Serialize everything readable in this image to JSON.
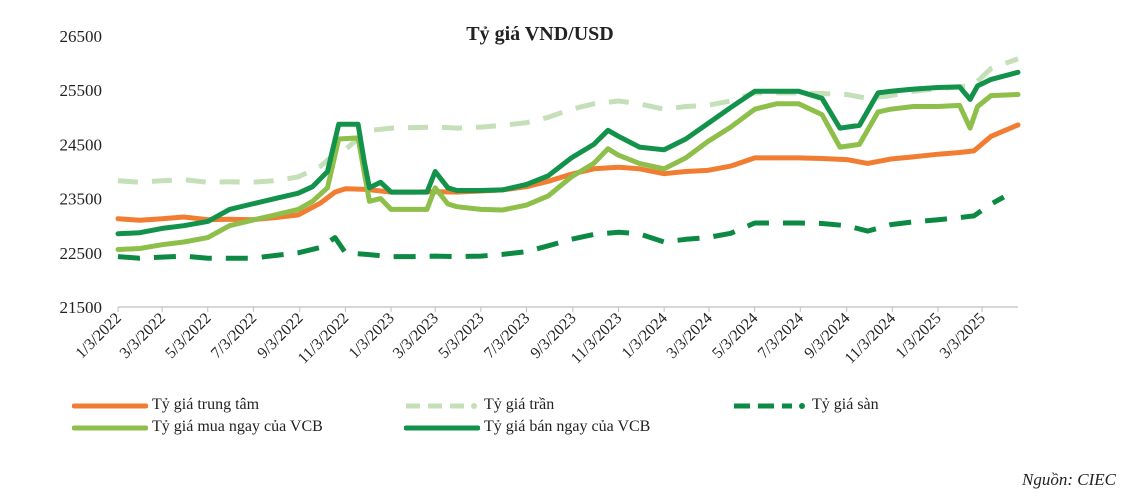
{
  "chart_data": {
    "type": "line",
    "title": "Tỷ giá VND/USD",
    "ylim": [
      21500,
      26500
    ],
    "yticks": [
      21500,
      22500,
      23500,
      24500,
      25500,
      26500
    ],
    "xlim": [
      "2022-01-03",
      "2025-04-20"
    ],
    "xticks": [
      "1/3/2022",
      "3/3/2022",
      "5/3/2022",
      "7/3/2022",
      "9/3/2022",
      "11/3/2022",
      "1/3/2023",
      "3/3/2023",
      "5/3/2023",
      "7/3/2023",
      "9/3/2023",
      "11/3/2023",
      "1/3/2024",
      "3/3/2024",
      "5/3/2024",
      "7/3/2024",
      "9/3/2024",
      "11/3/2024",
      "1/3/2025",
      "3/3/2025"
    ],
    "grid": false,
    "legend_position": "bottom",
    "source": "Nguồn: CIEC",
    "series": [
      {
        "name": "Tỷ giá trung tâm",
        "color": "#f07d32",
        "style": "solid",
        "points": [
          [
            "2022-01-03",
            23130
          ],
          [
            "2022-02-01",
            23100
          ],
          [
            "2022-03-03",
            23130
          ],
          [
            "2022-04-01",
            23160
          ],
          [
            "2022-05-03",
            23110
          ],
          [
            "2022-06-01",
            23120
          ],
          [
            "2022-07-01",
            23110
          ],
          [
            "2022-08-01",
            23150
          ],
          [
            "2022-09-01",
            23200
          ],
          [
            "2022-10-01",
            23420
          ],
          [
            "2022-10-20",
            23620
          ],
          [
            "2022-11-03",
            23680
          ],
          [
            "2022-12-01",
            23670
          ],
          [
            "2023-01-03",
            23620
          ],
          [
            "2023-02-01",
            23620
          ],
          [
            "2023-03-03",
            23630
          ],
          [
            "2023-04-01",
            23620
          ],
          [
            "2023-05-03",
            23640
          ],
          [
            "2023-06-01",
            23660
          ],
          [
            "2023-07-03",
            23720
          ],
          [
            "2023-08-01",
            23820
          ],
          [
            "2023-09-01",
            23950
          ],
          [
            "2023-10-01",
            24050
          ],
          [
            "2023-11-03",
            24080
          ],
          [
            "2023-12-01",
            24050
          ],
          [
            "2024-01-03",
            23960
          ],
          [
            "2024-02-01",
            24000
          ],
          [
            "2024-03-01",
            24020
          ],
          [
            "2024-04-01",
            24100
          ],
          [
            "2024-05-03",
            24250
          ],
          [
            "2024-06-01",
            24250
          ],
          [
            "2024-07-01",
            24250
          ],
          [
            "2024-08-01",
            24240
          ],
          [
            "2024-09-03",
            24220
          ],
          [
            "2024-10-01",
            24150
          ],
          [
            "2024-11-01",
            24230
          ],
          [
            "2024-12-01",
            24270
          ],
          [
            "2025-01-03",
            24320
          ],
          [
            "2025-02-01",
            24350
          ],
          [
            "2025-02-20",
            24380
          ],
          [
            "2025-03-15",
            24650
          ],
          [
            "2025-04-20",
            24860
          ]
        ]
      },
      {
        "name": "Tỷ giá trần",
        "color": "#c5dfb9",
        "style": "dashed",
        "points": [
          [
            "2022-01-03",
            23830
          ],
          [
            "2022-02-01",
            23800
          ],
          [
            "2022-03-03",
            23830
          ],
          [
            "2022-04-01",
            23850
          ],
          [
            "2022-05-03",
            23800
          ],
          [
            "2022-06-01",
            23810
          ],
          [
            "2022-07-01",
            23800
          ],
          [
            "2022-08-01",
            23830
          ],
          [
            "2022-09-01",
            23900
          ],
          [
            "2022-10-01",
            24100
          ],
          [
            "2022-10-20",
            24330
          ],
          [
            "2022-11-03",
            24400
          ],
          [
            "2022-12-01",
            24750
          ],
          [
            "2023-01-03",
            24800
          ],
          [
            "2023-02-01",
            24810
          ],
          [
            "2023-03-03",
            24820
          ],
          [
            "2023-04-01",
            24800
          ],
          [
            "2023-05-03",
            24820
          ],
          [
            "2023-06-01",
            24850
          ],
          [
            "2023-07-03",
            24900
          ],
          [
            "2023-08-01",
            25000
          ],
          [
            "2023-09-01",
            25150
          ],
          [
            "2023-10-01",
            25250
          ],
          [
            "2023-11-03",
            25300
          ],
          [
            "2023-12-01",
            25250
          ],
          [
            "2024-01-03",
            25150
          ],
          [
            "2024-02-01",
            25200
          ],
          [
            "2024-03-01",
            25220
          ],
          [
            "2024-04-01",
            25300
          ],
          [
            "2024-05-03",
            25450
          ],
          [
            "2024-06-01",
            25450
          ],
          [
            "2024-07-01",
            25450
          ],
          [
            "2024-08-01",
            25440
          ],
          [
            "2024-09-03",
            25420
          ],
          [
            "2024-10-01",
            25350
          ],
          [
            "2024-11-01",
            25400
          ],
          [
            "2024-12-01",
            25480
          ],
          [
            "2025-01-03",
            25530
          ],
          [
            "2025-02-01",
            25560
          ],
          [
            "2025-02-20",
            25600
          ],
          [
            "2025-03-15",
            25900
          ],
          [
            "2025-04-20",
            26080
          ]
        ]
      },
      {
        "name": "Tỷ giá sàn",
        "color": "#0c8a43",
        "style": "dashed",
        "points": [
          [
            "2022-01-03",
            22430
          ],
          [
            "2022-02-01",
            22400
          ],
          [
            "2022-03-03",
            22420
          ],
          [
            "2022-04-01",
            22440
          ],
          [
            "2022-05-03",
            22400
          ],
          [
            "2022-06-01",
            22400
          ],
          [
            "2022-07-01",
            22400
          ],
          [
            "2022-08-01",
            22450
          ],
          [
            "2022-09-01",
            22500
          ],
          [
            "2022-10-01",
            22600
          ],
          [
            "2022-10-20",
            22780
          ],
          [
            "2022-11-03",
            22500
          ],
          [
            "2022-12-01",
            22470
          ],
          [
            "2023-01-03",
            22430
          ],
          [
            "2023-02-01",
            22430
          ],
          [
            "2023-03-03",
            22440
          ],
          [
            "2023-04-01",
            22430
          ],
          [
            "2023-05-03",
            22440
          ],
          [
            "2023-06-01",
            22470
          ],
          [
            "2023-07-03",
            22520
          ],
          [
            "2023-08-01",
            22630
          ],
          [
            "2023-09-01",
            22750
          ],
          [
            "2023-10-01",
            22840
          ],
          [
            "2023-11-03",
            22880
          ],
          [
            "2023-12-01",
            22850
          ],
          [
            "2024-01-03",
            22700
          ],
          [
            "2024-02-01",
            22750
          ],
          [
            "2024-03-01",
            22780
          ],
          [
            "2024-04-01",
            22860
          ],
          [
            "2024-05-03",
            23050
          ],
          [
            "2024-06-01",
            23050
          ],
          [
            "2024-07-01",
            23050
          ],
          [
            "2024-08-01",
            23040
          ],
          [
            "2024-09-03",
            23000
          ],
          [
            "2024-10-01",
            22900
          ],
          [
            "2024-11-01",
            23020
          ],
          [
            "2024-12-01",
            23070
          ],
          [
            "2025-01-03",
            23110
          ],
          [
            "2025-02-01",
            23150
          ],
          [
            "2025-02-20",
            23180
          ],
          [
            "2025-03-15",
            23400
          ],
          [
            "2025-04-01",
            23530
          ]
        ]
      },
      {
        "name": "Tỷ giá mua ngay của VCB",
        "color": "#8dbf4a",
        "style": "solid",
        "points": [
          [
            "2022-01-03",
            22560
          ],
          [
            "2022-02-01",
            22580
          ],
          [
            "2022-03-03",
            22650
          ],
          [
            "2022-04-01",
            22700
          ],
          [
            "2022-05-03",
            22780
          ],
          [
            "2022-06-01",
            23000
          ],
          [
            "2022-07-01",
            23100
          ],
          [
            "2022-08-01",
            23200
          ],
          [
            "2022-09-01",
            23300
          ],
          [
            "2022-09-20",
            23450
          ],
          [
            "2022-10-10",
            23700
          ],
          [
            "2022-10-25",
            24600
          ],
          [
            "2022-11-20",
            24620
          ],
          [
            "2022-11-28",
            24000
          ],
          [
            "2022-12-05",
            23450
          ],
          [
            "2022-12-20",
            23500
          ],
          [
            "2023-01-03",
            23300
          ],
          [
            "2023-02-01",
            23300
          ],
          [
            "2023-02-20",
            23300
          ],
          [
            "2023-03-03",
            23700
          ],
          [
            "2023-03-20",
            23400
          ],
          [
            "2023-04-01",
            23350
          ],
          [
            "2023-05-03",
            23300
          ],
          [
            "2023-06-01",
            23290
          ],
          [
            "2023-07-03",
            23380
          ],
          [
            "2023-08-01",
            23550
          ],
          [
            "2023-09-01",
            23900
          ],
          [
            "2023-10-01",
            24150
          ],
          [
            "2023-10-20",
            24420
          ],
          [
            "2023-11-03",
            24300
          ],
          [
            "2023-12-01",
            24150
          ],
          [
            "2024-01-03",
            24050
          ],
          [
            "2024-02-01",
            24250
          ],
          [
            "2024-03-01",
            24550
          ],
          [
            "2024-04-01",
            24820
          ],
          [
            "2024-05-03",
            25150
          ],
          [
            "2024-06-01",
            25250
          ],
          [
            "2024-07-01",
            25250
          ],
          [
            "2024-08-01",
            25050
          ],
          [
            "2024-08-25",
            24450
          ],
          [
            "2024-09-20",
            24500
          ],
          [
            "2024-10-15",
            25100
          ],
          [
            "2024-11-01",
            25150
          ],
          [
            "2024-12-01",
            25200
          ],
          [
            "2025-01-03",
            25200
          ],
          [
            "2025-02-01",
            25220
          ],
          [
            "2025-02-15",
            24800
          ],
          [
            "2025-02-25",
            25200
          ],
          [
            "2025-03-15",
            25400
          ],
          [
            "2025-04-20",
            25420
          ]
        ]
      },
      {
        "name": "Tỷ giá bán ngay của VCB",
        "color": "#12924a",
        "style": "solid",
        "points": [
          [
            "2022-01-03",
            22850
          ],
          [
            "2022-02-01",
            22870
          ],
          [
            "2022-03-03",
            22950
          ],
          [
            "2022-04-01",
            23000
          ],
          [
            "2022-05-03",
            23080
          ],
          [
            "2022-06-01",
            23300
          ],
          [
            "2022-07-01",
            23400
          ],
          [
            "2022-08-01",
            23500
          ],
          [
            "2022-09-01",
            23600
          ],
          [
            "2022-09-20",
            23720
          ],
          [
            "2022-10-10",
            24000
          ],
          [
            "2022-10-25",
            24870
          ],
          [
            "2022-11-20",
            24870
          ],
          [
            "2022-11-28",
            24200
          ],
          [
            "2022-12-05",
            23700
          ],
          [
            "2022-12-20",
            23800
          ],
          [
            "2023-01-03",
            23620
          ],
          [
            "2023-02-01",
            23620
          ],
          [
            "2023-02-20",
            23620
          ],
          [
            "2023-03-03",
            24000
          ],
          [
            "2023-03-20",
            23700
          ],
          [
            "2023-04-01",
            23650
          ],
          [
            "2023-05-03",
            23650
          ],
          [
            "2023-06-01",
            23660
          ],
          [
            "2023-07-03",
            23760
          ],
          [
            "2023-08-01",
            23920
          ],
          [
            "2023-09-01",
            24250
          ],
          [
            "2023-10-01",
            24500
          ],
          [
            "2023-10-20",
            24760
          ],
          [
            "2023-11-03",
            24650
          ],
          [
            "2023-12-01",
            24450
          ],
          [
            "2024-01-03",
            24400
          ],
          [
            "2024-02-01",
            24600
          ],
          [
            "2024-03-01",
            24880
          ],
          [
            "2024-04-01",
            25180
          ],
          [
            "2024-05-03",
            25480
          ],
          [
            "2024-06-01",
            25480
          ],
          [
            "2024-07-01",
            25480
          ],
          [
            "2024-08-01",
            25350
          ],
          [
            "2024-08-25",
            24800
          ],
          [
            "2024-09-20",
            24850
          ],
          [
            "2024-10-15",
            25450
          ],
          [
            "2024-11-01",
            25480
          ],
          [
            "2024-12-01",
            25520
          ],
          [
            "2025-01-03",
            25550
          ],
          [
            "2025-02-01",
            25560
          ],
          [
            "2025-02-15",
            25330
          ],
          [
            "2025-02-25",
            25580
          ],
          [
            "2025-03-15",
            25700
          ],
          [
            "2025-04-20",
            25830
          ]
        ]
      }
    ]
  }
}
